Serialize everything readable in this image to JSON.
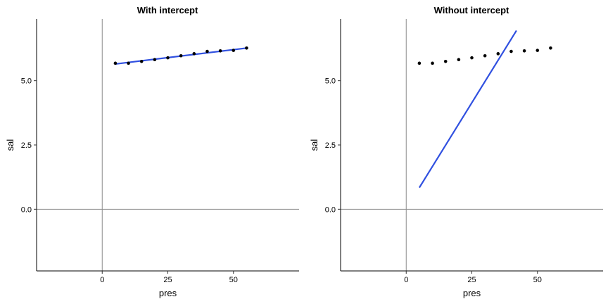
{
  "chart_data": [
    {
      "type": "scatter",
      "title": "With intercept",
      "xlabel": "pres",
      "ylabel": "sal",
      "xlim": [
        -25,
        75
      ],
      "ylim": [
        -2.4,
        7.4
      ],
      "xticks": [
        0,
        25,
        50
      ],
      "xtick_labels": [
        "0",
        "25",
        "50"
      ],
      "yticks": [
        0,
        2.5,
        5
      ],
      "ytick_labels": [
        "0.0",
        "2.5",
        "5.0"
      ],
      "reference_lines": {
        "x": 0,
        "y": 0
      },
      "grid": false,
      "points": {
        "x": [
          5,
          10,
          15,
          20,
          25,
          30,
          35,
          40,
          45,
          50,
          55
        ],
        "y": [
          5.68,
          5.68,
          5.75,
          5.82,
          5.89,
          5.97,
          6.05,
          6.14,
          6.16,
          6.18,
          6.27
        ]
      },
      "fit_line": {
        "color": "#3050e0",
        "x": [
          5,
          55
        ],
        "y": [
          5.65,
          6.27
        ]
      }
    },
    {
      "type": "scatter",
      "title": "Without intercept",
      "xlabel": "pres",
      "ylabel": "sal",
      "xlim": [
        -25,
        75
      ],
      "ylim": [
        -2.4,
        7.4
      ],
      "xticks": [
        0,
        25,
        50
      ],
      "xtick_labels": [
        "0",
        "25",
        "50"
      ],
      "yticks": [
        0,
        2.5,
        5
      ],
      "ytick_labels": [
        "0.0",
        "2.5",
        "5.0"
      ],
      "reference_lines": {
        "x": 0,
        "y": 0
      },
      "grid": false,
      "points": {
        "x": [
          5,
          10,
          15,
          20,
          25,
          30,
          35,
          40,
          45,
          50,
          55
        ],
        "y": [
          5.68,
          5.68,
          5.75,
          5.82,
          5.89,
          5.97,
          6.05,
          6.14,
          6.16,
          6.18,
          6.27
        ]
      },
      "fit_line": {
        "color": "#3050e0",
        "x": [
          5,
          42
        ],
        "y": [
          0.84,
          6.95
        ]
      }
    }
  ]
}
